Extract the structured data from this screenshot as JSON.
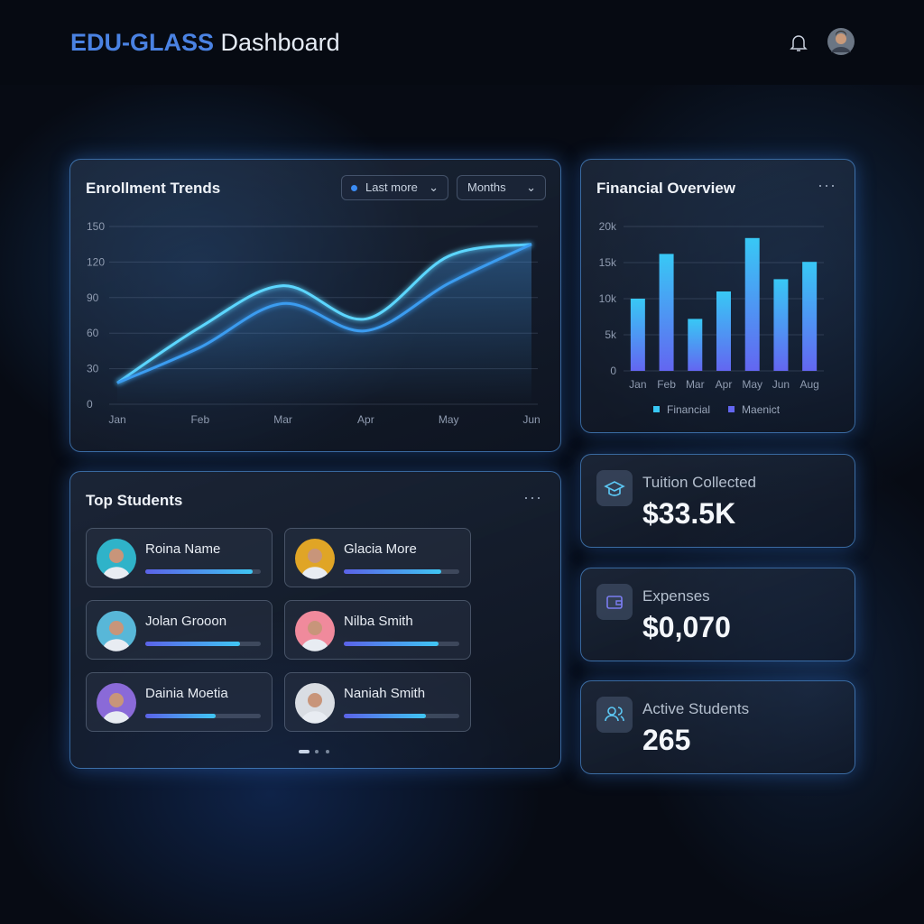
{
  "header": {
    "brand": "EDU-GLASS",
    "title": "Dashboard"
  },
  "enrollment": {
    "type": "line",
    "title": "Enrollment Trends",
    "filters": [
      "Last more",
      "Months"
    ],
    "categories": [
      "Jan",
      "Feb",
      "Mar",
      "Apr",
      "May",
      "Jun"
    ],
    "ylim": [
      0,
      150
    ],
    "yticks": [
      0,
      30,
      60,
      90,
      120,
      150
    ],
    "grid": true,
    "series": [
      {
        "color": "#5cd6ff",
        "values": [
          18,
          65,
          100,
          72,
          125,
          135
        ]
      },
      {
        "color": "#3b9cf0",
        "values": [
          18,
          48,
          85,
          62,
          102,
          135
        ]
      }
    ]
  },
  "financial": {
    "type": "bar",
    "title": "Financial Overview",
    "categories": [
      "Jan",
      "Feb",
      "Mar",
      "Apr",
      "May",
      "Jun",
      "Aug"
    ],
    "values": [
      10000,
      16200,
      7200,
      11000,
      18400,
      12700,
      15100
    ],
    "ylim": [
      0,
      20000
    ],
    "yticks": [
      0,
      {
        "value": 5000,
        "label": "5k"
      },
      {
        "value": 10000,
        "label": "10k"
      },
      {
        "value": 15000,
        "label": "15k"
      },
      {
        "value": 20000,
        "label": "20k"
      }
    ],
    "grid": true,
    "legend": [
      {
        "label": "Financial",
        "color": "#38c8f5"
      },
      {
        "label": "Maenict",
        "color": "#6366f1"
      }
    ]
  },
  "top_students": {
    "title": "Top Students",
    "students": [
      {
        "name": "Roina Name",
        "progress": 93,
        "avatar_color": "#2fb3c9"
      },
      {
        "name": "Glacia More",
        "progress": 84,
        "avatar_color": "#e0a526"
      },
      {
        "name": "Jolan Grooon",
        "progress": 82,
        "avatar_color": "#58b7d8"
      },
      {
        "name": "Nilba Smith",
        "progress": 82,
        "avatar_color": "#f08a9c"
      },
      {
        "name": "Dainia Moetia",
        "progress": 61,
        "avatar_color": "#8a6ad8"
      },
      {
        "name": "Naniah Smith",
        "progress": 71,
        "avatar_color": "#d9dde3"
      }
    ]
  },
  "stats": [
    {
      "label": "Tuition Collected",
      "value": "$33.5K"
    },
    {
      "label": "Expenses",
      "value": "$0,070"
    },
    {
      "label": "Active Students",
      "value": 265
    }
  ]
}
